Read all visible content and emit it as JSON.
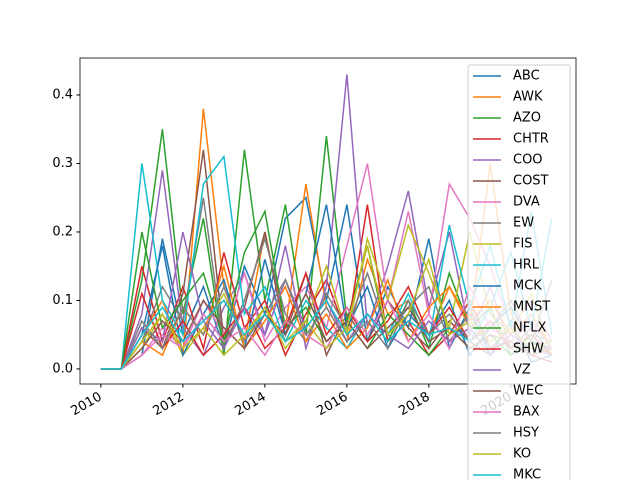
{
  "chart_data": {
    "type": "line",
    "x": [
      2010,
      2010.5,
      2011,
      2011.5,
      2012,
      2012.5,
      2013,
      2013.5,
      2014,
      2014.5,
      2015,
      2015.5,
      2016,
      2016.5,
      2017,
      2017.5,
      2018,
      2018.5,
      2019,
      2019.5,
      2020,
      2020.5,
      2021
    ],
    "xlim": [
      2009.49,
      2021.59
    ],
    "xticks": [
      2010,
      2012,
      2014,
      2016,
      2018,
      2020
    ],
    "ylim": [
      -0.022,
      0.454
    ],
    "yticks": [
      {
        "value": 0,
        "label": "0.0"
      },
      {
        "value": 0.1,
        "label": "0.1"
      },
      {
        "value": 0.2,
        "label": "0.2"
      },
      {
        "value": 0.3,
        "label": "0.3"
      },
      {
        "value": 0.4,
        "label": "0.4"
      }
    ],
    "legend": "upper right",
    "series": [
      {
        "name": "ABC",
        "color": "#1f77b4",
        "values": [
          0,
          0,
          0.02,
          0.19,
          0.05,
          0.12,
          0.03,
          0.15,
          0.08,
          0.22,
          0.25,
          0.1,
          0.24,
          0.04,
          0.12,
          0.06,
          0.19,
          0.03,
          0.09,
          0.02,
          0.07,
          0.01,
          0.02
        ]
      },
      {
        "name": "AWK",
        "color": "#ff7f0e",
        "values": [
          0,
          0,
          0.05,
          0.1,
          0.02,
          0.38,
          0.12,
          0.04,
          0.2,
          0.06,
          0.27,
          0.09,
          0.04,
          0.16,
          0.08,
          0.1,
          0.05,
          0.12,
          0.06,
          0.3,
          0.08,
          0.04,
          0.03
        ]
      },
      {
        "name": "AZO",
        "color": "#2ca02c",
        "values": [
          0,
          0,
          0.13,
          0.35,
          0.08,
          0.22,
          0.02,
          0.32,
          0.1,
          0.24,
          0.05,
          0.34,
          0.07,
          0.18,
          0.04,
          0.1,
          0.03,
          0.14,
          0.06,
          0.09,
          0.02,
          0.05,
          0.04
        ]
      },
      {
        "name": "CHTR",
        "color": "#d62728",
        "values": [
          0,
          0,
          0.15,
          0.04,
          0.12,
          0.03,
          0.17,
          0.06,
          0.1,
          0.02,
          0.08,
          0.13,
          0.05,
          0.24,
          0.04,
          0.07,
          0.02,
          0.05,
          0.1,
          0.03,
          0.04,
          0.02,
          0.01
        ]
      },
      {
        "name": "COO",
        "color": "#9467bd",
        "values": [
          0,
          0,
          0.08,
          0.29,
          0.06,
          0.02,
          0.09,
          0.14,
          0.05,
          0.18,
          0.03,
          0.12,
          0.43,
          0.06,
          0.15,
          0.26,
          0.09,
          0.2,
          0.05,
          0.12,
          0.03,
          0.06,
          0.02
        ]
      },
      {
        "name": "COST",
        "color": "#8c564b",
        "values": [
          0,
          0,
          0.06,
          0.03,
          0.11,
          0.32,
          0.04,
          0.09,
          0.2,
          0.05,
          0.14,
          0.02,
          0.08,
          0.04,
          0.1,
          0.06,
          0.03,
          0.07,
          0.04,
          0.02,
          0.05,
          0.03,
          0.02
        ]
      },
      {
        "name": "DVA",
        "color": "#e377c2",
        "values": [
          0,
          0,
          0.02,
          0.06,
          0.03,
          0.1,
          0.05,
          0.14,
          0.04,
          0.09,
          0.12,
          0.06,
          0.18,
          0.3,
          0.1,
          0.23,
          0.08,
          0.27,
          0.22,
          0.15,
          0.06,
          0.1,
          0.04
        ]
      },
      {
        "name": "EW",
        "color": "#7f7f7f",
        "values": [
          0,
          0,
          0.04,
          0.12,
          0.07,
          0.25,
          0.03,
          0.1,
          0.19,
          0.08,
          0.04,
          0.11,
          0.06,
          0.14,
          0.05,
          0.09,
          0.12,
          0.04,
          0.08,
          0.03,
          0.06,
          0.02,
          0.03
        ]
      },
      {
        "name": "FIS",
        "color": "#bcbd22",
        "values": [
          0,
          0,
          0.03,
          0.08,
          0.02,
          0.06,
          0.11,
          0.04,
          0.09,
          0.03,
          0.07,
          0.15,
          0.05,
          0.19,
          0.1,
          0.21,
          0.14,
          0.06,
          0.2,
          0.08,
          0.05,
          0.11,
          0.02
        ]
      },
      {
        "name": "HRL",
        "color": "#17becf",
        "values": [
          0,
          0,
          0.3,
          0.1,
          0.05,
          0.27,
          0.31,
          0.08,
          0.12,
          0.04,
          0.1,
          0.06,
          0.03,
          0.08,
          0.05,
          0.11,
          0.04,
          0.21,
          0.09,
          0.18,
          0.06,
          0.23,
          0.05
        ]
      },
      {
        "name": "MCK",
        "color": "#1f77b4",
        "values": [
          0,
          0,
          0.05,
          0.18,
          0.02,
          0.08,
          0.13,
          0.03,
          0.16,
          0.05,
          0.11,
          0.24,
          0.06,
          0.12,
          0.03,
          0.08,
          0.05,
          0.1,
          0.02,
          0.06,
          0.09,
          0.04,
          0.03
        ]
      },
      {
        "name": "MNST",
        "color": "#ff7f0e",
        "values": [
          0,
          0,
          0.04,
          0.02,
          0.09,
          0.05,
          0.15,
          0.03,
          0.07,
          0.12,
          0.04,
          0.08,
          0.03,
          0.06,
          0.13,
          0.04,
          0.09,
          0.12,
          0.07,
          0.1,
          0.05,
          0.08,
          0.03
        ]
      },
      {
        "name": "NFLX",
        "color": "#2ca02c",
        "values": [
          0,
          0,
          0.2,
          0.06,
          0.1,
          0.14,
          0.04,
          0.17,
          0.23,
          0.06,
          0.09,
          0.04,
          0.07,
          0.03,
          0.08,
          0.05,
          0.02,
          0.06,
          0.03,
          0.05,
          0.02,
          0.04,
          0.02
        ]
      },
      {
        "name": "SHW",
        "color": "#d62728",
        "values": [
          0,
          0,
          0.11,
          0.03,
          0.07,
          0.02,
          0.05,
          0.09,
          0.03,
          0.06,
          0.14,
          0.05,
          0.09,
          0.04,
          0.07,
          0.12,
          0.05,
          0.09,
          0.04,
          0.07,
          0.03,
          0.05,
          0.02
        ]
      },
      {
        "name": "VZ",
        "color": "#9467bd",
        "values": [
          0,
          0,
          0.06,
          0.04,
          0.2,
          0.07,
          0.03,
          0.09,
          0.05,
          0.13,
          0.06,
          0.1,
          0.04,
          0.08,
          0.05,
          0.03,
          0.07,
          0.04,
          0.06,
          0.02,
          0.05,
          0.03,
          0.02
        ]
      },
      {
        "name": "WEC",
        "color": "#8c564b",
        "values": [
          0,
          0,
          0.03,
          0.07,
          0.04,
          0.1,
          0.06,
          0.03,
          0.08,
          0.05,
          0.11,
          0.04,
          0.07,
          0.03,
          0.06,
          0.09,
          0.04,
          0.06,
          0.03,
          0.05,
          0.04,
          0.02,
          0.03
        ]
      },
      {
        "name": "BAX",
        "color": "#e377c2",
        "values": [
          0,
          0,
          0.02,
          0.05,
          0.03,
          0.08,
          0.04,
          0.06,
          0.02,
          0.07,
          0.05,
          0.03,
          0.09,
          0.05,
          0.1,
          0.04,
          0.08,
          0.03,
          0.12,
          0.06,
          0.04,
          0.07,
          0.03
        ]
      },
      {
        "name": "HSY",
        "color": "#7f7f7f",
        "values": [
          0,
          0,
          0.07,
          0.03,
          0.09,
          0.05,
          0.12,
          0.04,
          0.08,
          0.13,
          0.05,
          0.09,
          0.04,
          0.07,
          0.03,
          0.1,
          0.05,
          0.08,
          0.04,
          0.06,
          0.1,
          0.04,
          0.13
        ]
      },
      {
        "name": "KO",
        "color": "#bcbd22",
        "values": [
          0,
          0,
          0.04,
          0.08,
          0.03,
          0.06,
          0.02,
          0.05,
          0.09,
          0.04,
          0.07,
          0.03,
          0.06,
          0.18,
          0.05,
          0.08,
          0.16,
          0.05,
          0.07,
          0.04,
          0.06,
          0.03,
          0.04
        ]
      },
      {
        "name": "MKC",
        "color": "#17becf",
        "values": [
          0,
          0,
          0.05,
          0.09,
          0.04,
          0.07,
          0.1,
          0.05,
          0.08,
          0.04,
          0.06,
          0.1,
          0.05,
          0.08,
          0.04,
          0.07,
          0.05,
          0.06,
          0.04,
          0.09,
          0.17,
          0.06,
          0.22
        ]
      }
    ]
  }
}
